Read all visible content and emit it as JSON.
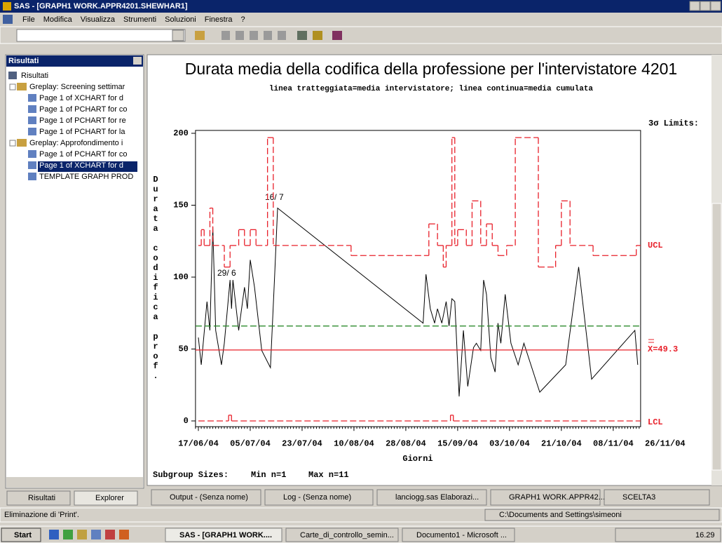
{
  "window": {
    "title": "SAS - [GRAPH1  WORK.APPR4201.SHEWHAR1]",
    "menu": [
      "File",
      "Modifica",
      "Visualizza",
      "Strumenti",
      "Soluzioni",
      "Finestra",
      "?"
    ]
  },
  "results_panel": {
    "header": "Risultati",
    "root": "Risultati",
    "groups": [
      {
        "label": "Greplay:  Screening settimar",
        "items": [
          "Page 1 of XCHART for d",
          "Page 1 of PCHART for co",
          "Page 1 of PCHART for re",
          "Page 1 of PCHART for la"
        ]
      },
      {
        "label": "Greplay:  Approfondimento i",
        "items": [
          "Page 1 of PCHART for co",
          "Page 1 of XCHART for d",
          "TEMPLATE GRAPH PROD"
        ]
      }
    ],
    "tabs": [
      "Risultati",
      "Explorer"
    ]
  },
  "window_tabs": [
    "Output - (Senza nome)",
    "Log - (Senza nome)",
    "lanciogg.sas   Elaborazi...",
    "GRAPH1  WORK.APPR42...",
    "SCELTA3"
  ],
  "status": {
    "message": "Eliminazione di 'Print'.",
    "path": "C:\\Documents and Settings\\simeoni"
  },
  "taskbar": {
    "start": "Start",
    "items": [
      "SAS - [GRAPH1  WORK....",
      "Carte_di_controllo_semin...",
      "Documento1 - Microsoft ..."
    ],
    "clock": "16.29"
  },
  "chart_data": {
    "type": "line",
    "title": "Durata media della codifica della professione per l'intervistatore 4201",
    "subtitle": "linea tratteggiata=media intervistatore; linea continua=media cumulata",
    "y_label": "Durata codifica prof.",
    "x_label": "Giorni",
    "limits_label": "3σ Limits:",
    "ucl_label": "UCL",
    "center_label": "X=49.3",
    "lcl_label": "LCL",
    "footer": [
      "Subgroup Sizes:",
      "Min n=1",
      "Max n=11"
    ],
    "annotations": [
      "16/ 7",
      "29/ 6"
    ],
    "xlim": [
      -1,
      153.5
    ],
    "xticks": [
      {
        "value": 0,
        "label": "17/06/04"
      },
      {
        "value": 18,
        "label": "05/07/04"
      },
      {
        "value": 36,
        "label": "23/07/04"
      },
      {
        "value": 54,
        "label": "10/08/04"
      },
      {
        "value": 72,
        "label": "28/08/04"
      },
      {
        "value": 90,
        "label": "15/09/04"
      },
      {
        "value": 108,
        "label": "03/10/04"
      },
      {
        "value": 126,
        "label": "21/10/04"
      },
      {
        "value": 144,
        "label": "08/11/04"
      },
      {
        "value": 162,
        "label": "26/11/04"
      }
    ],
    "ylim": [
      -4,
      202
    ],
    "yticks": [
      0,
      50,
      100,
      150,
      200
    ],
    "series": [
      {
        "color": "#000000",
        "style": "solid",
        "step": false,
        "x": [
          0,
          1,
          3,
          4,
          5,
          6,
          8,
          9,
          11,
          11.5,
          12,
          14,
          16,
          17,
          18,
          19.5,
          22,
          25,
          26.5,
          27.5,
          78,
          79,
          80.5,
          82,
          83,
          84.5,
          86,
          87,
          88,
          89,
          90.5,
          92,
          93.5,
          95.5,
          96.5,
          98,
          99,
          100,
          101.5,
          103,
          104,
          105,
          106.5,
          108.5,
          111,
          113,
          118.5,
          127.5,
          132,
          136.5,
          151.5,
          152.5
        ],
        "values": [
          58,
          39,
          83,
          63,
          135,
          63,
          39,
          54,
          98,
          78,
          98,
          63,
          93,
          78,
          112,
          93,
          49,
          37,
          102,
          148,
          68,
          102,
          78,
          68,
          78,
          68,
          83,
          66,
          85,
          83,
          17,
          63,
          24,
          51,
          54,
          49,
          98,
          88,
          44,
          34,
          68,
          54,
          88,
          54,
          39,
          54,
          20,
          39,
          107,
          29,
          63,
          39
        ]
      },
      {
        "color": "#e8202a",
        "style": "dashed",
        "step": true,
        "x": [
          0,
          1,
          2,
          4,
          5,
          9,
          11,
          14,
          16,
          18,
          20,
          24,
          26,
          53,
          80,
          83,
          85,
          86,
          88,
          89,
          90,
          93,
          95,
          98,
          100,
          102,
          104,
          107,
          110,
          118,
          124,
          126,
          129,
          137,
          152
        ],
        "values": [
          122,
          133,
          122,
          148,
          122,
          107,
          122,
          133,
          122,
          133,
          122,
          197,
          122,
          115,
          137,
          122,
          107,
          122,
          197,
          122,
          133,
          122,
          153,
          122,
          137,
          122,
          115,
          122,
          197,
          107,
          122,
          153,
          122,
          115,
          122
        ]
      },
      {
        "color": "#e8202a",
        "style": "dashed",
        "step": true,
        "x": [
          0,
          10.5,
          11.5,
          87.5,
          88.5
        ],
        "values": [
          0,
          4,
          0,
          4,
          0
        ]
      },
      {
        "color": "#e8202a",
        "style": "solid",
        "step": false,
        "x": [
          -1,
          153.5
        ],
        "values": [
          49.3,
          49.3
        ]
      },
      {
        "color": "#2e8b2e",
        "style": "dashed",
        "step": false,
        "x": [
          -1,
          153.5
        ],
        "values": [
          66,
          66
        ]
      }
    ]
  }
}
